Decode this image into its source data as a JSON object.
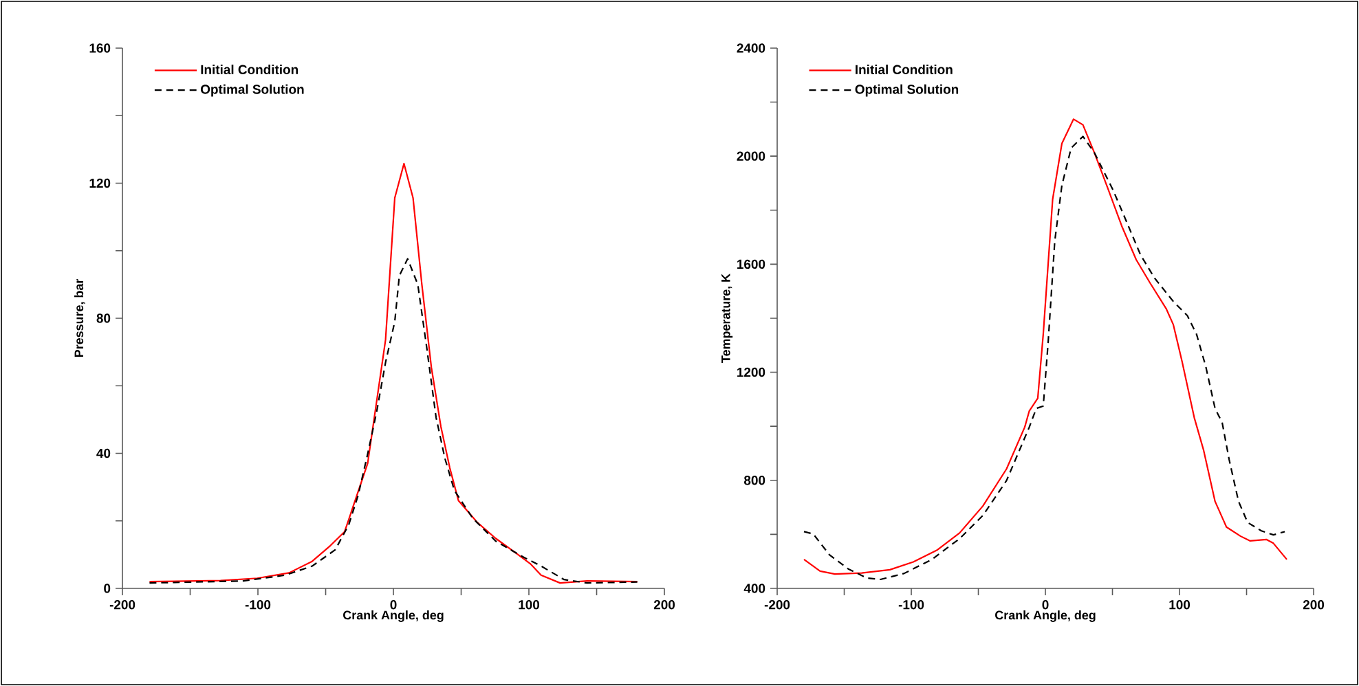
{
  "chart_data": [
    {
      "type": "line",
      "xlabel": "Crank Angle, deg",
      "ylabel": "Pressure, bar",
      "xlim": [
        -200,
        200
      ],
      "xticks": [
        -200,
        {
          "value": -150,
          "label": null
        },
        -100,
        {
          "value": -50,
          "label": null
        },
        0,
        {
          "value": 50,
          "label": null
        },
        100,
        {
          "value": 150,
          "label": null
        },
        200
      ],
      "ylim": [
        0,
        160
      ],
      "yticks": [
        0,
        {
          "value": 20,
          "label": null
        },
        40,
        {
          "value": 60,
          "label": null
        },
        80,
        {
          "value": 100,
          "label": null
        },
        120,
        {
          "value": 140,
          "label": null
        },
        160
      ],
      "legend": "top left",
      "grid": false,
      "marker": "none",
      "series": [
        {
          "name": "Initial Condition",
          "color": "#ff0000",
          "line_style": "solid",
          "x": [
            -180,
            -127.6,
            -100.5,
            -77,
            -60,
            -46.4,
            -36,
            -19,
            -5.8,
            1,
            7.8,
            14.5,
            21,
            28,
            35,
            41.6,
            48,
            62,
            75.5,
            92,
            101,
            109,
            123,
            143,
            180
          ],
          "values": [
            2.0,
            2.3,
            3.0,
            4.6,
            8,
            12.7,
            16.8,
            37,
            73.6,
            115.6,
            125.8,
            115.6,
            90,
            65.5,
            48,
            35.7,
            26,
            19.5,
            14.8,
            10,
            7.3,
            3.9,
            1.6,
            2.2,
            2.0
          ]
        },
        {
          "name": "Optimal Solution",
          "color": "#000000",
          "line_style": "dashed",
          "x": [
            -180,
            -110.7,
            -80,
            -60,
            -43,
            -33,
            -26,
            -19,
            -12.5,
            -5.8,
            1,
            4.4,
            10.5,
            18,
            24.7,
            31.5,
            38,
            45,
            58.5,
            75.5,
            95.8,
            109,
            126,
            143,
            180
          ],
          "values": [
            1.6,
            2.2,
            3.9,
            6.6,
            11.4,
            18.8,
            27.6,
            39.8,
            52,
            66.9,
            79,
            92.6,
            97.6,
            90,
            71,
            50.6,
            38.5,
            29,
            20.8,
            14,
            9.3,
            6.6,
            2.6,
            1.6,
            1.9
          ]
        }
      ]
    },
    {
      "type": "line",
      "xlabel": "Crank Angle, deg",
      "ylabel": "Temperature, K",
      "xlim": [
        -200,
        200
      ],
      "xticks": [
        -200,
        {
          "value": -150,
          "label": null
        },
        -100,
        {
          "value": -50,
          "label": null
        },
        0,
        {
          "value": 50,
          "label": null
        },
        100,
        {
          "value": 150,
          "label": null
        },
        200
      ],
      "ylim": [
        400,
        2400
      ],
      "yticks": [
        400,
        {
          "value": 600,
          "label": null
        },
        800,
        {
          "value": 1000,
          "label": null
        },
        1200,
        {
          "value": 1400,
          "label": null
        },
        1600,
        {
          "value": 1800,
          "label": null
        },
        2000,
        {
          "value": 2200,
          "label": null
        },
        2400
      ],
      "legend": "top left",
      "grid": false,
      "marker": "none",
      "series": [
        {
          "name": "Initial Condition",
          "color": "#ff0000",
          "line_style": "solid",
          "x": [
            -180,
            -168,
            -157,
            -137,
            -116,
            -98.5,
            -81,
            -64,
            -46.6,
            -29,
            -15.4,
            -12,
            -5.7,
            -1.6,
            5.4,
            12.3,
            21,
            28,
            36.5,
            47,
            57.3,
            67.7,
            78,
            90,
            95.4,
            102,
            111,
            118,
            126.5,
            135,
            145.6,
            152.5,
            164.7,
            170,
            180
          ],
          "values": [
            507,
            464,
            453,
            457,
            469,
            498,
            541,
            605,
            705,
            842,
            997,
            1057,
            1104,
            1341,
            1840,
            2047,
            2137,
            2116,
            2013,
            1875,
            1737,
            1617,
            1531,
            1436,
            1376,
            1238,
            1032,
            911,
            722,
            627,
            593,
            576,
            581,
            567,
            507
          ]
        },
        {
          "name": "Optimal Solution",
          "color": "#000000",
          "line_style": "dashed",
          "x": [
            -180,
            -173,
            -161,
            -147,
            -133,
            -123,
            -105.5,
            -84.7,
            -64,
            -46.6,
            -29,
            -12,
            -6.8,
            -1.6,
            2,
            7,
            12.3,
            19.2,
            28,
            36.5,
            50.4,
            60.8,
            71,
            81.5,
            95.4,
            105.8,
            112.7,
            119.6,
            126.5,
            131.8,
            137,
            144,
            150.8,
            161,
            170,
            178.5
          ],
          "values": [
            610,
            601,
            524,
            472,
            438,
            433,
            455,
            507,
            584,
            670,
            799,
            997,
            1066,
            1075,
            1307,
            1686,
            1892,
            2030,
            2073,
            2013,
            1875,
            1754,
            1634,
            1548,
            1462,
            1410,
            1341,
            1221,
            1066,
            1014,
            877,
            722,
            644,
            613,
            598,
            610
          ]
        }
      ]
    }
  ]
}
